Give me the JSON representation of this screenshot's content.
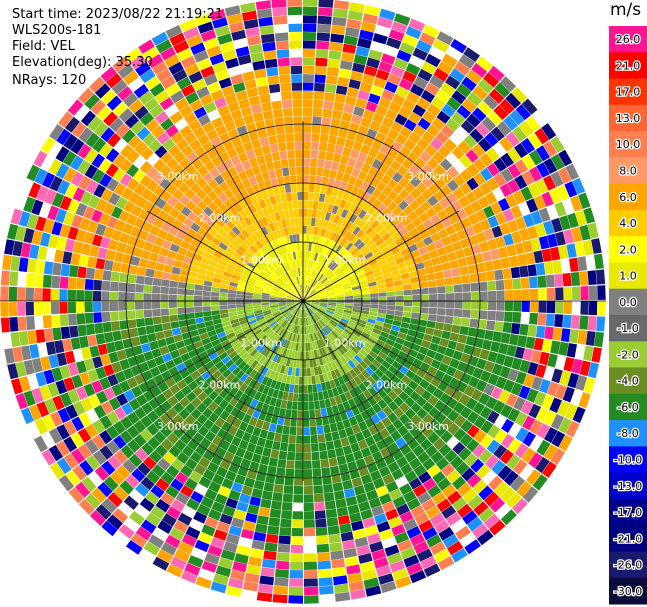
{
  "header": {
    "start_time": "Start time: 2023/08/22 21:19:21",
    "site": "WLS200s-181",
    "field": "Field: VEL",
    "elevation": "Elevation(deg): 35.30",
    "nrays": "NRays: 120"
  },
  "chart_data": {
    "type": "heatmap",
    "projection": "polar-ppi",
    "n_rays": 120,
    "range_rings_km": [
      1.0,
      2.0,
      3.0
    ],
    "range_ring_labels": [
      "1.00km",
      "2.00km",
      "3.00km"
    ],
    "spoke_angles_deg": [
      0,
      30,
      60,
      90,
      120,
      150,
      180,
      210,
      240,
      270,
      300,
      330
    ],
    "colorbar": {
      "unit": "m/s",
      "tick_labels": [
        "26.0",
        "21.0",
        "17.0",
        "13.0",
        "10.0",
        "8.0",
        "6.0",
        "4.0",
        "2.0",
        "1.0",
        "0.0",
        "-1.0",
        "-2.0",
        "-4.0",
        "-6.0",
        "-8.0",
        "-10.0",
        "-13.0",
        "-17.0",
        "-21.0",
        "-26.0",
        "-30.0"
      ],
      "colors": [
        "#ff1493",
        "#ff0000",
        "#ff3300",
        "#ff6633",
        "#ff7f50",
        "#ff9966",
        "#ffa500",
        "#ffcc00",
        "#ffff00",
        "#e8e800",
        "#808080",
        "#696969",
        "#9acd32",
        "#6b8e23",
        "#228b22",
        "#1e90ff",
        "#0000ff",
        "#0000cd",
        "#00008b",
        "#000080",
        "#191970",
        "#0b0b3a"
      ]
    }
  }
}
